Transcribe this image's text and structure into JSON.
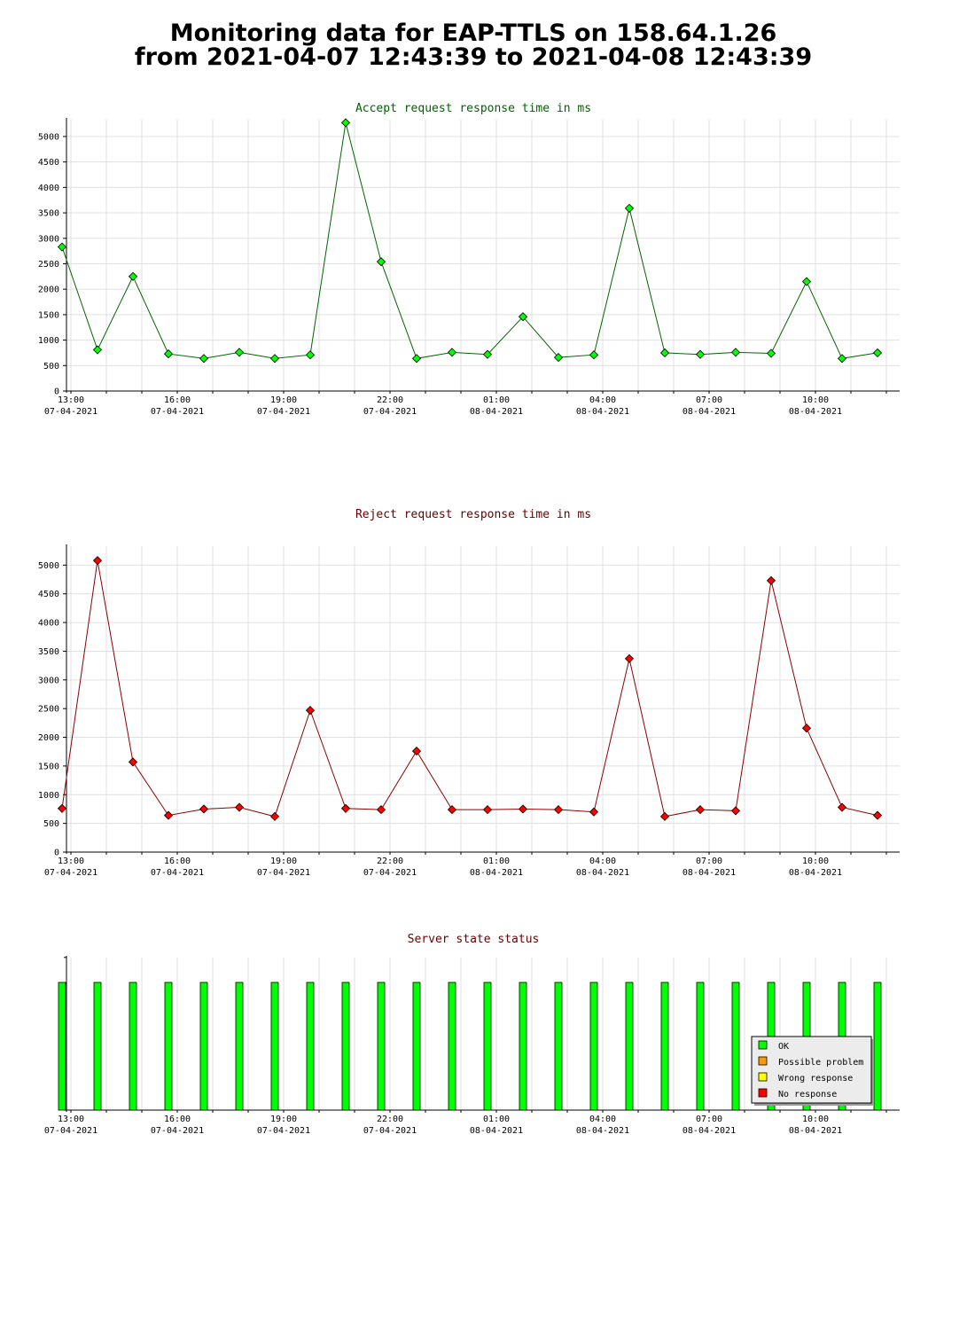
{
  "page": {
    "title_line1": "Monitoring data for EAP-TTLS on 158.64.1.26",
    "title_line2": "from 2021-04-07 12:43:39 to 2021-04-08 12:43:39"
  },
  "x_ticks": [
    {
      "time": "13:00",
      "date": "07-04-2021"
    },
    {
      "time": "16:00",
      "date": "07-04-2021"
    },
    {
      "time": "19:00",
      "date": "07-04-2021"
    },
    {
      "time": "22:00",
      "date": "07-04-2021"
    },
    {
      "time": "01:00",
      "date": "08-04-2021"
    },
    {
      "time": "04:00",
      "date": "08-04-2021"
    },
    {
      "time": "07:00",
      "date": "08-04-2021"
    },
    {
      "time": "10:00",
      "date": "08-04-2021"
    }
  ],
  "colors": {
    "accept_line": "#006400",
    "accept_marker": "#00ff00",
    "accept_title": "#006400",
    "reject_line": "#8b0000",
    "reject_marker": "#ff0000",
    "reject_title": "#660000",
    "status_title": "#660000",
    "ok": "#00ff00",
    "possible_problem": "#ff9900",
    "wrong_response": "#ffff00",
    "no_response": "#ff0000"
  },
  "chart_data": [
    {
      "type": "line",
      "title": "Accept request response time in ms",
      "xlabel": "",
      "ylabel": "",
      "x": [
        "2021-04-07 12:45",
        "2021-04-07 13:45",
        "2021-04-07 14:45",
        "2021-04-07 15:45",
        "2021-04-07 16:45",
        "2021-04-07 17:45",
        "2021-04-07 18:45",
        "2021-04-07 19:45",
        "2021-04-07 20:45",
        "2021-04-07 21:45",
        "2021-04-07 22:45",
        "2021-04-07 23:45",
        "2021-04-08 00:45",
        "2021-04-08 01:45",
        "2021-04-08 02:45",
        "2021-04-08 03:45",
        "2021-04-08 04:45",
        "2021-04-08 05:45",
        "2021-04-08 06:45",
        "2021-04-08 07:45",
        "2021-04-08 08:45",
        "2021-04-08 09:45",
        "2021-04-08 10:45",
        "2021-04-08 11:45"
      ],
      "values": [
        2830,
        810,
        2250,
        730,
        640,
        760,
        640,
        710,
        5270,
        2540,
        640,
        760,
        720,
        1460,
        660,
        710,
        3590,
        750,
        720,
        760,
        740,
        2150,
        640,
        750
      ],
      "yticks": [
        0,
        500,
        1000,
        1500,
        2000,
        2500,
        3000,
        3500,
        4000,
        4500,
        5000
      ],
      "ylim": [
        0,
        5330
      ],
      "grid": true
    },
    {
      "type": "line",
      "title": "Reject request response time in ms",
      "xlabel": "",
      "ylabel": "",
      "x": [
        "2021-04-07 12:45",
        "2021-04-07 13:45",
        "2021-04-07 14:45",
        "2021-04-07 15:45",
        "2021-04-07 16:45",
        "2021-04-07 17:45",
        "2021-04-07 18:45",
        "2021-04-07 19:45",
        "2021-04-07 20:45",
        "2021-04-07 21:45",
        "2021-04-07 22:45",
        "2021-04-07 23:45",
        "2021-04-08 00:45",
        "2021-04-08 01:45",
        "2021-04-08 02:45",
        "2021-04-08 03:45",
        "2021-04-08 04:45",
        "2021-04-08 05:45",
        "2021-04-08 06:45",
        "2021-04-08 07:45",
        "2021-04-08 08:45",
        "2021-04-08 09:45",
        "2021-04-08 10:45",
        "2021-04-08 11:45"
      ],
      "values": [
        760,
        5080,
        1570,
        640,
        750,
        780,
        620,
        2470,
        760,
        740,
        1760,
        740,
        740,
        750,
        740,
        700,
        3370,
        620,
        740,
        720,
        4730,
        2160,
        780,
        640
      ],
      "yticks": [
        0,
        500,
        1000,
        1500,
        2000,
        2500,
        3000,
        3500,
        4000,
        4500,
        5000
      ],
      "ylim": [
        0,
        5330
      ],
      "grid": true
    },
    {
      "type": "bar",
      "title": "Server state status",
      "xlabel": "",
      "ylabel": "",
      "x": [
        "2021-04-07 12:45",
        "2021-04-07 13:45",
        "2021-04-07 14:45",
        "2021-04-07 15:45",
        "2021-04-07 16:45",
        "2021-04-07 17:45",
        "2021-04-07 18:45",
        "2021-04-07 19:45",
        "2021-04-07 20:45",
        "2021-04-07 21:45",
        "2021-04-07 22:45",
        "2021-04-07 23:45",
        "2021-04-08 00:45",
        "2021-04-08 01:45",
        "2021-04-08 02:45",
        "2021-04-08 03:45",
        "2021-04-08 04:45",
        "2021-04-08 05:45",
        "2021-04-08 06:45",
        "2021-04-08 07:45",
        "2021-04-08 08:45",
        "2021-04-08 09:45",
        "2021-04-08 10:45",
        "2021-04-08 11:45"
      ],
      "states": [
        "OK",
        "OK",
        "OK",
        "OK",
        "OK",
        "OK",
        "OK",
        "OK",
        "OK",
        "OK",
        "OK",
        "OK",
        "OK",
        "OK",
        "OK",
        "OK",
        "OK",
        "OK",
        "OK",
        "OK",
        "OK",
        "OK",
        "OK",
        "OK"
      ],
      "legend": [
        "OK",
        "Possible problem",
        "Wrong response",
        "No response"
      ],
      "legend_position": "bottom-right"
    }
  ]
}
